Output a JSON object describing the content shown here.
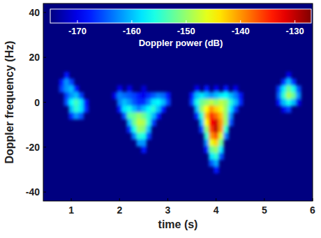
{
  "chart_data": {
    "type": "heatmap",
    "x_label": "time (s)",
    "y_label": "Doppler frequency (Hz)",
    "xlim": [
      0.42,
      6
    ],
    "xticks": [
      1,
      2,
      3,
      4,
      5,
      6
    ],
    "ylim": [
      -44,
      44
    ],
    "yticks": [
      -40,
      -20,
      0,
      20,
      40
    ],
    "x_bin_width": 0.1,
    "y_bin_height": 3,
    "background": -175,
    "cells": [
      [
        0.9,
        12,
        -168
      ],
      [
        5.5,
        12,
        -170
      ],
      [
        0.8,
        9,
        -168
      ],
      [
        0.9,
        9,
        -162
      ],
      [
        1.0,
        9,
        -166
      ],
      [
        5.4,
        9,
        -167
      ],
      [
        5.5,
        9,
        -160
      ],
      [
        5.6,
        9,
        -167
      ],
      [
        0.8,
        6,
        -166
      ],
      [
        0.9,
        6,
        -162
      ],
      [
        1.0,
        6,
        -160
      ],
      [
        1.1,
        6,
        -168
      ],
      [
        2.0,
        6,
        -170
      ],
      [
        2.2,
        6,
        -170
      ],
      [
        2.5,
        6,
        -171
      ],
      [
        3.6,
        6,
        -170
      ],
      [
        3.8,
        6,
        -168
      ],
      [
        4.0,
        6,
        -170
      ],
      [
        4.2,
        6,
        -168
      ],
      [
        4.4,
        6,
        -170
      ],
      [
        5.3,
        6,
        -166
      ],
      [
        5.4,
        6,
        -158
      ],
      [
        5.5,
        6,
        -152
      ],
      [
        5.6,
        6,
        -156
      ],
      [
        5.7,
        6,
        -165
      ],
      [
        0.9,
        3,
        -166
      ],
      [
        1.0,
        3,
        -162
      ],
      [
        1.1,
        3,
        -160
      ],
      [
        1.2,
        3,
        -166
      ],
      [
        1.9,
        3,
        -170
      ],
      [
        2.0,
        3,
        -163
      ],
      [
        2.1,
        3,
        -164
      ],
      [
        2.2,
        3,
        -165
      ],
      [
        2.3,
        3,
        -166
      ],
      [
        2.4,
        3,
        -168
      ],
      [
        2.5,
        3,
        -170
      ],
      [
        2.6,
        3,
        -167
      ],
      [
        2.7,
        3,
        -165
      ],
      [
        2.8,
        3,
        -163
      ],
      [
        2.9,
        3,
        -164
      ],
      [
        3.0,
        3,
        -168
      ],
      [
        3.5,
        3,
        -168
      ],
      [
        3.6,
        3,
        -160
      ],
      [
        3.7,
        3,
        -158
      ],
      [
        3.8,
        3,
        -160
      ],
      [
        3.9,
        3,
        -162
      ],
      [
        4.0,
        3,
        -160
      ],
      [
        4.1,
        3,
        -158
      ],
      [
        4.2,
        3,
        -157
      ],
      [
        4.3,
        3,
        -160
      ],
      [
        4.4,
        3,
        -163
      ],
      [
        4.5,
        3,
        -168
      ],
      [
        5.3,
        3,
        -164
      ],
      [
        5.4,
        3,
        -155
      ],
      [
        5.5,
        3,
        -149
      ],
      [
        5.6,
        3,
        -152
      ],
      [
        5.7,
        3,
        -162
      ],
      [
        0.9,
        0,
        -165
      ],
      [
        1.0,
        0,
        -157
      ],
      [
        1.1,
        0,
        -154
      ],
      [
        1.2,
        0,
        -158
      ],
      [
        1.3,
        0,
        -168
      ],
      [
        2.0,
        0,
        -163
      ],
      [
        2.1,
        0,
        -160
      ],
      [
        2.2,
        0,
        -162
      ],
      [
        2.3,
        0,
        -165
      ],
      [
        2.4,
        0,
        -167
      ],
      [
        2.5,
        0,
        -167
      ],
      [
        2.6,
        0,
        -163
      ],
      [
        2.7,
        0,
        -158
      ],
      [
        2.8,
        0,
        -157
      ],
      [
        2.9,
        0,
        -160
      ],
      [
        3.0,
        0,
        -166
      ],
      [
        3.5,
        0,
        -166
      ],
      [
        3.6,
        0,
        -156
      ],
      [
        3.7,
        0,
        -152
      ],
      [
        3.8,
        0,
        -150
      ],
      [
        3.9,
        0,
        -148
      ],
      [
        4.0,
        0,
        -150
      ],
      [
        4.1,
        0,
        -148
      ],
      [
        4.2,
        0,
        -150
      ],
      [
        4.3,
        0,
        -155
      ],
      [
        4.4,
        0,
        -160
      ],
      [
        4.5,
        0,
        -167
      ],
      [
        5.3,
        0,
        -168
      ],
      [
        5.4,
        0,
        -160
      ],
      [
        5.5,
        0,
        -156
      ],
      [
        5.6,
        0,
        -160
      ],
      [
        5.7,
        0,
        -170
      ],
      [
        1.0,
        -3,
        -160
      ],
      [
        1.1,
        -3,
        -155
      ],
      [
        1.2,
        -3,
        -158
      ],
      [
        1.3,
        -3,
        -167
      ],
      [
        2.0,
        -3,
        -168
      ],
      [
        2.1,
        -3,
        -158
      ],
      [
        2.2,
        -3,
        -156
      ],
      [
        2.3,
        -3,
        -160
      ],
      [
        2.4,
        -3,
        -163
      ],
      [
        2.5,
        -3,
        -160
      ],
      [
        2.6,
        -3,
        -157
      ],
      [
        2.7,
        -3,
        -155
      ],
      [
        2.8,
        -3,
        -160
      ],
      [
        2.9,
        -3,
        -168
      ],
      [
        3.6,
        -3,
        -160
      ],
      [
        3.7,
        -3,
        -150
      ],
      [
        3.8,
        -3,
        -145
      ],
      [
        3.9,
        -3,
        -140
      ],
      [
        4.0,
        -3,
        -143
      ],
      [
        4.1,
        -3,
        -146
      ],
      [
        4.2,
        -3,
        -150
      ],
      [
        4.3,
        -3,
        -158
      ],
      [
        4.4,
        -3,
        -166
      ],
      [
        5.4,
        -3,
        -170
      ],
      [
        5.5,
        -3,
        -166
      ],
      [
        1.0,
        -6,
        -167
      ],
      [
        1.1,
        -6,
        -162
      ],
      [
        1.2,
        -6,
        -165
      ],
      [
        2.1,
        -6,
        -165
      ],
      [
        2.2,
        -6,
        -153
      ],
      [
        2.3,
        -6,
        -152
      ],
      [
        2.4,
        -6,
        -150
      ],
      [
        2.5,
        -6,
        -152
      ],
      [
        2.6,
        -6,
        -155
      ],
      [
        2.7,
        -6,
        -160
      ],
      [
        2.8,
        -6,
        -168
      ],
      [
        3.6,
        -6,
        -167
      ],
      [
        3.7,
        -6,
        -155
      ],
      [
        3.8,
        -6,
        -142
      ],
      [
        3.9,
        -6,
        -135
      ],
      [
        4.0,
        -6,
        -138
      ],
      [
        4.1,
        -6,
        -142
      ],
      [
        4.2,
        -6,
        -150
      ],
      [
        4.3,
        -6,
        -162
      ],
      [
        2.2,
        -9,
        -160
      ],
      [
        2.3,
        -9,
        -152
      ],
      [
        2.4,
        -9,
        -148
      ],
      [
        2.5,
        -9,
        -149
      ],
      [
        2.6,
        -9,
        -155
      ],
      [
        2.7,
        -9,
        -166
      ],
      [
        3.7,
        -9,
        -160
      ],
      [
        3.8,
        -9,
        -145
      ],
      [
        3.9,
        -9,
        -133
      ],
      [
        4.0,
        -9,
        -131
      ],
      [
        4.1,
        -9,
        -140
      ],
      [
        4.2,
        -9,
        -150
      ],
      [
        4.3,
        -9,
        -165
      ],
      [
        2.2,
        -12,
        -167
      ],
      [
        2.3,
        -12,
        -156
      ],
      [
        2.4,
        -12,
        -150
      ],
      [
        2.5,
        -12,
        -151
      ],
      [
        2.6,
        -12,
        -160
      ],
      [
        3.7,
        -12,
        -166
      ],
      [
        3.8,
        -12,
        -150
      ],
      [
        3.9,
        -12,
        -136
      ],
      [
        4.0,
        -12,
        -130
      ],
      [
        4.1,
        -12,
        -140
      ],
      [
        4.2,
        -12,
        -155
      ],
      [
        2.3,
        -15,
        -163
      ],
      [
        2.4,
        -15,
        -155
      ],
      [
        2.5,
        -15,
        -156
      ],
      [
        2.6,
        -15,
        -166
      ],
      [
        3.8,
        -15,
        -155
      ],
      [
        3.9,
        -15,
        -140
      ],
      [
        4.0,
        -15,
        -137
      ],
      [
        4.1,
        -15,
        -147
      ],
      [
        4.2,
        -15,
        -163
      ],
      [
        2.4,
        -18,
        -162
      ],
      [
        2.5,
        -18,
        -162
      ],
      [
        3.8,
        -18,
        -162
      ],
      [
        3.9,
        -18,
        -146
      ],
      [
        4.0,
        -18,
        -143
      ],
      [
        4.1,
        -18,
        -152
      ],
      [
        2.5,
        -21,
        -168
      ],
      [
        3.8,
        -21,
        -168
      ],
      [
        3.9,
        -21,
        -152
      ],
      [
        4.0,
        -21,
        -150
      ],
      [
        4.1,
        -21,
        -158
      ],
      [
        3.9,
        -24,
        -158
      ],
      [
        4.0,
        -24,
        -155
      ],
      [
        4.1,
        -24,
        -165
      ],
      [
        3.9,
        -27,
        -165
      ],
      [
        4.0,
        -27,
        -161
      ],
      [
        4.0,
        -30,
        -168
      ]
    ],
    "colorbar": {
      "label": "Doppler power (dB)",
      "range": [
        -175,
        -127
      ],
      "ticks": [
        -170,
        -160,
        -150,
        -140,
        -130
      ]
    }
  }
}
